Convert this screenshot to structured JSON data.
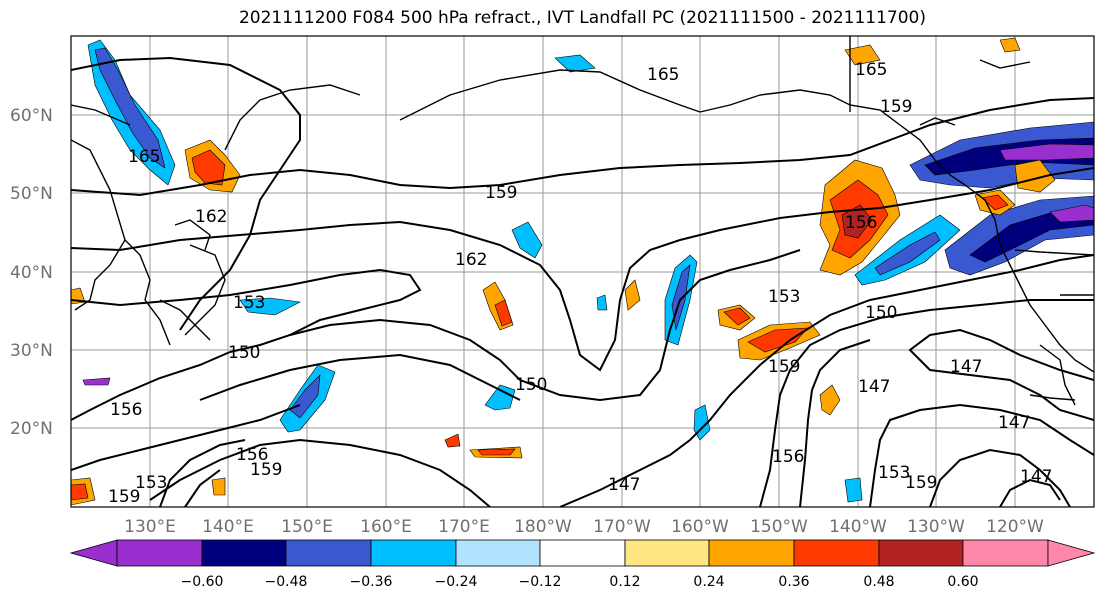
{
  "title": "2021111200 F084 500 hPa refract., IVT Landfall PC (2021111500 - 2021111700)",
  "lat_labels": [
    "60°N",
    "50°N",
    "40°N",
    "30°N",
    "20°N"
  ],
  "lon_labels": [
    "130°E",
    "140°E",
    "150°E",
    "160°E",
    "170°E",
    "180°W",
    "170°W",
    "160°W",
    "150°W",
    "140°W",
    "130°W",
    "120°W"
  ],
  "colorbar": {
    "colors": [
      "#9a2fd0",
      "#00007f",
      "#3a58d0",
      "#00bfff",
      "#b3e4ff",
      "#ffffff",
      "#ffe680",
      "#ffa500",
      "#ff3a00",
      "#b22222",
      "#ff88aa"
    ],
    "tick_labels": [
      "−0.60",
      "−0.48",
      "−0.36",
      "−0.24",
      "−0.12",
      "0.12",
      "0.24",
      "0.36",
      "0.48",
      "0.60"
    ]
  },
  "contour_labels": [
    "165",
    "162",
    "165",
    "165",
    "159",
    "159",
    "162",
    "153",
    "150",
    "156",
    "156",
    "153",
    "159",
    "159",
    "150",
    "153",
    "156",
    "150",
    "159",
    "147",
    "147",
    "147",
    "147",
    "156",
    "153",
    "159",
    "147"
  ]
}
